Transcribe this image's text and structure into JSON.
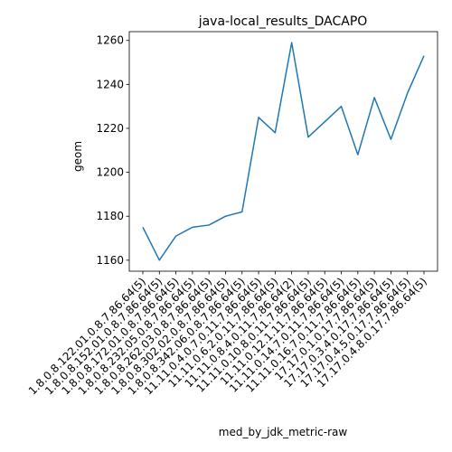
{
  "chart_data": {
    "type": "line",
    "title": "java-local_results_DACAPO",
    "xlabel": "med_by_jdk_metric-raw",
    "ylabel": "geom",
    "categories": [
      "1.8.0.8.122.01.0.8.7.86.64(5)",
      "1.8.0.8.152.01.0.8.7.86.64(5)",
      "1.8.0.8.172.01.0.8.7.86.64(5)",
      "1.8.0.8.232.05.0.8.7.86.64(5)",
      "1.8.0.8.262.03.0.8.7.86.64(5)",
      "1.8.0.8.302.02.0.8.7.86.64(5)",
      "1.8.0.8.342.06.0.8.7.86.64(5)",
      "11.11.0.4.0.7.0.11.7.86.64(5)",
      "11.11.0.6.2.0.11.7.86.64(5)",
      "11.11.0.8.4.0.11.7.86.64(2)",
      "11.11.0.10.8.0.11.7.86.64(5)",
      "11.11.0.12.1.11.7.86.64(5)",
      "11.11.0.14.7.0.11.7.86.64(5)",
      "11.11.0.16.7.0.11.7.86.64(5)",
      "17.17.0.1.0.17.7.86.64(5)",
      "17.17.0.3.4.0.17.7.86.64(5)",
      "17.17.0.4.5.0.17.7.86.64(5)",
      "17.17.0.4.8.0.17.7.86.64(5)"
    ],
    "series": [
      {
        "values": [
          1175,
          1160,
          1171,
          1175,
          1176,
          1180,
          1182,
          1225,
          1218,
          1259,
          1216,
          1223,
          1230,
          1208,
          1234,
          1215,
          1236,
          1253
        ]
      }
    ],
    "ylim": [
      1155,
      1264
    ],
    "yticks": [
      1160,
      1180,
      1200,
      1220,
      1240,
      1260
    ],
    "grid": false,
    "line_color": "#1f77b4"
  }
}
